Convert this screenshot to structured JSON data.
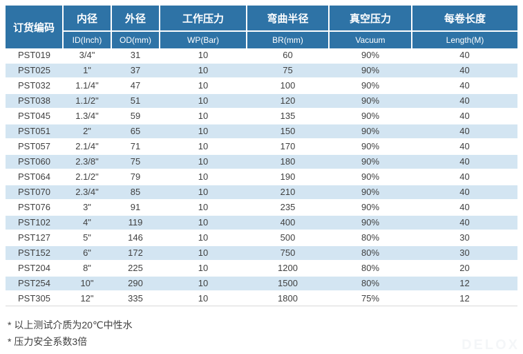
{
  "colors": {
    "header_bg": "#2e73a6",
    "header_text": "#ffffff",
    "row_alt_bg": "#d3e5f2",
    "row_bg": "#ffffff",
    "body_text": "#3f3f3f",
    "table_bottom_border": "#d8d8d8",
    "watermark_text": "#f4f6f8"
  },
  "table": {
    "columns": [
      {
        "key": "code",
        "zh": "订货编码",
        "en": ""
      },
      {
        "key": "id",
        "zh": "内径",
        "en": "ID(Inch)"
      },
      {
        "key": "od",
        "zh": "外径",
        "en": "OD(mm)"
      },
      {
        "key": "wp",
        "zh": "工作压力",
        "en": "WP(Bar)"
      },
      {
        "key": "br",
        "zh": "弯曲半径",
        "en": "BR(mm)"
      },
      {
        "key": "vacuum",
        "zh": "真空压力",
        "en": "Vacuum"
      },
      {
        "key": "length",
        "zh": "每卷长度",
        "en": "Length(M)"
      }
    ],
    "rows": [
      [
        "PST019",
        "3/4\"",
        "31",
        "10",
        "60",
        "90%",
        "40"
      ],
      [
        "PST025",
        "1\"",
        "37",
        "10",
        "75",
        "90%",
        "40"
      ],
      [
        "PST032",
        "1.1/4\"",
        "47",
        "10",
        "100",
        "90%",
        "40"
      ],
      [
        "PST038",
        "1.1/2\"",
        "51",
        "10",
        "120",
        "90%",
        "40"
      ],
      [
        "PST045",
        "1.3/4\"",
        "59",
        "10",
        "135",
        "90%",
        "40"
      ],
      [
        "PST051",
        "2\"",
        "65",
        "10",
        "150",
        "90%",
        "40"
      ],
      [
        "PST057",
        "2.1/4\"",
        "71",
        "10",
        "170",
        "90%",
        "40"
      ],
      [
        "PST060",
        "2.3/8\"",
        "75",
        "10",
        "180",
        "90%",
        "40"
      ],
      [
        "PST064",
        "2.1/2\"",
        "79",
        "10",
        "190",
        "90%",
        "40"
      ],
      [
        "PST070",
        "2.3/4\"",
        "85",
        "10",
        "210",
        "90%",
        "40"
      ],
      [
        "PST076",
        "3\"",
        "91",
        "10",
        "235",
        "90%",
        "40"
      ],
      [
        "PST102",
        "4\"",
        "119",
        "10",
        "400",
        "90%",
        "40"
      ],
      [
        "PST127",
        "5\"",
        "146",
        "10",
        "500",
        "80%",
        "30"
      ],
      [
        "PST152",
        "6\"",
        "172",
        "10",
        "750",
        "80%",
        "30"
      ],
      [
        "PST204",
        "8\"",
        "225",
        "10",
        "1200",
        "80%",
        "20"
      ],
      [
        "PST254",
        "10\"",
        "290",
        "10",
        "1500",
        "80%",
        "12"
      ],
      [
        "PST305",
        "12\"",
        "335",
        "10",
        "1800",
        "75%",
        "12"
      ]
    ]
  },
  "notes": [
    "* 以上测试介质为20℃中性水",
    "* 压力安全系数3倍"
  ],
  "watermark": "DELOX"
}
